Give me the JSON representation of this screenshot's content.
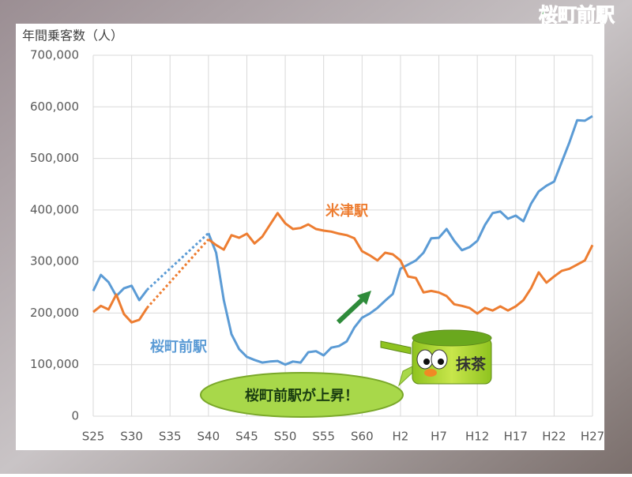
{
  "logo": "桜町前駅",
  "chart_data": {
    "type": "line",
    "y_label": "年間乗客数（人）",
    "categories": [
      "S25",
      null,
      null,
      null,
      null,
      "S30",
      null,
      null,
      null,
      null,
      "S35",
      null,
      null,
      null,
      null,
      "S40",
      null,
      null,
      null,
      null,
      "S45",
      null,
      null,
      null,
      null,
      "S50",
      null,
      null,
      null,
      null,
      "S55",
      null,
      null,
      null,
      null,
      "S60",
      null,
      null,
      null,
      null,
      "H2",
      null,
      null,
      null,
      null,
      "H7",
      null,
      null,
      null,
      null,
      "H12",
      null,
      null,
      null,
      null,
      "H17",
      null,
      null,
      null,
      null,
      "H22",
      null,
      null,
      null,
      null,
      "H27"
    ],
    "series": [
      {
        "name": "桜町前駅",
        "color": "#5b9bd5",
        "values": [
          243000,
          274000,
          260000,
          233000,
          248000,
          253000,
          225000,
          245000,
          null,
          null,
          null,
          null,
          null,
          null,
          null,
          355000,
          317000,
          225000,
          159000,
          130000,
          115000,
          109000,
          104000,
          106000,
          107000,
          100000,
          106000,
          104000,
          124000,
          126000,
          118000,
          133000,
          136000,
          145000,
          172000,
          191000,
          199000,
          210000,
          224000,
          237000,
          286000,
          294000,
          302000,
          317000,
          345000,
          346000,
          363000,
          340000,
          322000,
          328000,
          340000,
          371000,
          394000,
          397000,
          383000,
          389000,
          378000,
          412000,
          436000,
          447000,
          455000,
          493000,
          531000,
          574000,
          573000,
          582000
        ]
      },
      {
        "name": "米津駅",
        "color": "#ed7d31",
        "values": [
          202000,
          214000,
          207000,
          236000,
          198000,
          182000,
          187000,
          210000,
          null,
          null,
          null,
          null,
          null,
          null,
          null,
          343000,
          332000,
          323000,
          351000,
          346000,
          354000,
          335000,
          348000,
          371000,
          394000,
          374000,
          363000,
          365000,
          372000,
          363000,
          360000,
          358000,
          354000,
          351000,
          345000,
          320000,
          312000,
          302000,
          317000,
          314000,
          302000,
          271000,
          268000,
          240000,
          243000,
          240000,
          233000,
          217000,
          214000,
          210000,
          199000,
          210000,
          205000,
          213000,
          205000,
          213000,
          225000,
          248000,
          279000,
          259000,
          271000,
          282000,
          286000,
          294000,
          302000,
          332000
        ]
      }
    ],
    "ylim": [
      0,
      700000
    ],
    "yticks": [
      0,
      {
        "value": 100000,
        "label": "100,000"
      },
      {
        "value": 200000,
        "label": "200,000"
      },
      {
        "value": 300000,
        "label": "300,000"
      },
      {
        "value": 400000,
        "label": "400,000"
      },
      {
        "value": 500000,
        "label": "500,000"
      },
      {
        "value": 600000,
        "label": "600,000"
      },
      {
        "value": 700000,
        "label": "700,000"
      }
    ],
    "grid": true,
    "gap_line": "dotted",
    "annotations": {
      "bubble": "桜町前駅が上昇！",
      "mascot": "抹茶"
    }
  }
}
